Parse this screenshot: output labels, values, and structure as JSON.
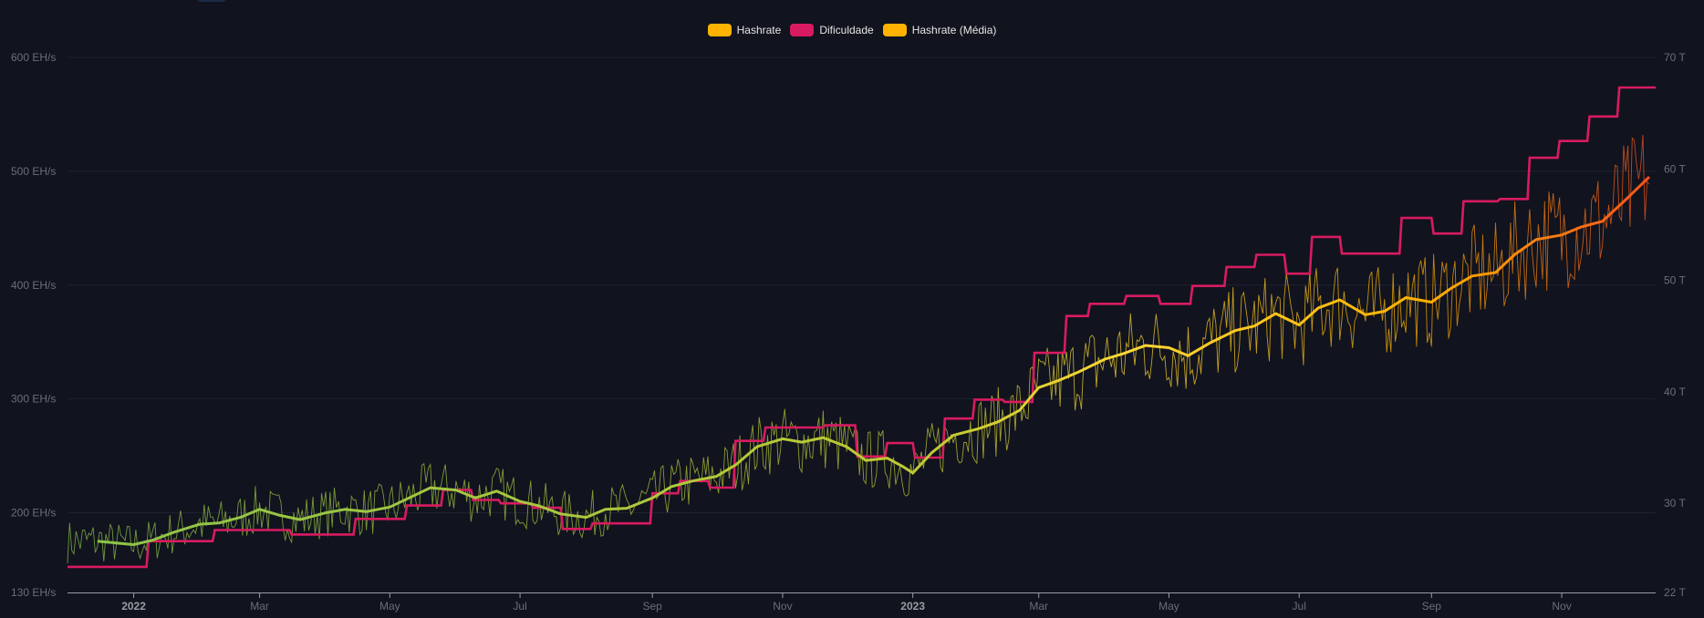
{
  "legend": [
    {
      "label": "Hashrate",
      "color": "#ffb300"
    },
    {
      "label": "Dificuldade",
      "color": "#d81b60"
    },
    {
      "label": "Hashrate (Média)",
      "color": "#ffb300"
    }
  ],
  "chart_data": {
    "type": "line",
    "x_range": [
      "2021-12-01",
      "2023-12-15"
    ],
    "y_left": {
      "min": 130,
      "max": 600,
      "unit": "EH/s",
      "ticks": [
        {
          "v": 130,
          "label": "130 EH/s"
        },
        {
          "v": 200,
          "label": "200 EH/s"
        },
        {
          "v": 300,
          "label": "300 EH/s"
        },
        {
          "v": 400,
          "label": "400 EH/s"
        },
        {
          "v": 500,
          "label": "500 EH/s"
        },
        {
          "v": 600,
          "label": "600 EH/s"
        }
      ]
    },
    "y_right": {
      "min": 22,
      "max": 70,
      "unit": "T",
      "ticks": [
        {
          "v": 22,
          "label": "22 T"
        },
        {
          "v": 30,
          "label": "30 T"
        },
        {
          "v": 40,
          "label": "40 T"
        },
        {
          "v": 50,
          "label": "50 T"
        },
        {
          "v": 60,
          "label": "60 T"
        },
        {
          "v": 70,
          "label": "70 T"
        }
      ]
    },
    "x_ticks": [
      {
        "date": "2022-01-01",
        "label": "2022",
        "bold": true
      },
      {
        "date": "2022-03-01",
        "label": "Mar",
        "bold": false
      },
      {
        "date": "2022-05-01",
        "label": "May",
        "bold": false
      },
      {
        "date": "2022-07-01",
        "label": "Jul",
        "bold": false
      },
      {
        "date": "2022-09-01",
        "label": "Sep",
        "bold": false
      },
      {
        "date": "2022-11-01",
        "label": "Nov",
        "bold": false
      },
      {
        "date": "2023-01-01",
        "label": "2023",
        "bold": true
      },
      {
        "date": "2023-03-01",
        "label": "Mar",
        "bold": false
      },
      {
        "date": "2023-05-01",
        "label": "May",
        "bold": false
      },
      {
        "date": "2023-07-01",
        "label": "Jul",
        "bold": false
      },
      {
        "date": "2023-09-01",
        "label": "Sep",
        "bold": false
      },
      {
        "date": "2023-11-01",
        "label": "Nov",
        "bold": false
      }
    ],
    "series": [
      {
        "name": "Hashrate (Média)",
        "axis": "left",
        "points": [
          [
            "2021-12-15",
            175
          ],
          [
            "2022-01-01",
            172
          ],
          [
            "2022-01-10",
            176
          ],
          [
            "2022-01-20",
            183
          ],
          [
            "2022-02-01",
            190
          ],
          [
            "2022-02-10",
            191
          ],
          [
            "2022-02-20",
            196
          ],
          [
            "2022-03-01",
            203
          ],
          [
            "2022-03-10",
            198
          ],
          [
            "2022-03-20",
            194
          ],
          [
            "2022-04-01",
            200
          ],
          [
            "2022-04-10",
            203
          ],
          [
            "2022-04-20",
            201
          ],
          [
            "2022-05-01",
            205
          ],
          [
            "2022-05-10",
            213
          ],
          [
            "2022-05-20",
            222
          ],
          [
            "2022-06-01",
            220
          ],
          [
            "2022-06-10",
            213
          ],
          [
            "2022-06-20",
            219
          ],
          [
            "2022-07-01",
            210
          ],
          [
            "2022-07-10",
            206
          ],
          [
            "2022-07-20",
            199
          ],
          [
            "2022-08-01",
            196
          ],
          [
            "2022-08-10",
            203
          ],
          [
            "2022-08-20",
            204
          ],
          [
            "2022-09-01",
            213
          ],
          [
            "2022-09-10",
            223
          ],
          [
            "2022-09-20",
            228
          ],
          [
            "2022-10-01",
            232
          ],
          [
            "2022-10-10",
            242
          ],
          [
            "2022-10-20",
            258
          ],
          [
            "2022-11-01",
            265
          ],
          [
            "2022-11-10",
            262
          ],
          [
            "2022-11-20",
            266
          ],
          [
            "2022-12-01",
            258
          ],
          [
            "2022-12-10",
            246
          ],
          [
            "2022-12-20",
            248
          ],
          [
            "2022-12-27",
            241
          ],
          [
            "2023-01-01",
            235
          ],
          [
            "2023-01-10",
            253
          ],
          [
            "2023-01-20",
            268
          ],
          [
            "2023-02-01",
            274
          ],
          [
            "2023-02-10",
            280
          ],
          [
            "2023-02-20",
            290
          ],
          [
            "2023-03-01",
            310
          ],
          [
            "2023-03-10",
            316
          ],
          [
            "2023-03-20",
            324
          ],
          [
            "2023-04-01",
            335
          ],
          [
            "2023-04-10",
            340
          ],
          [
            "2023-04-20",
            347
          ],
          [
            "2023-05-01",
            345
          ],
          [
            "2023-05-10",
            338
          ],
          [
            "2023-05-20",
            349
          ],
          [
            "2023-06-01",
            360
          ],
          [
            "2023-06-10",
            364
          ],
          [
            "2023-06-20",
            375
          ],
          [
            "2023-07-01",
            365
          ],
          [
            "2023-07-10",
            380
          ],
          [
            "2023-07-20",
            387
          ],
          [
            "2023-08-01",
            374
          ],
          [
            "2023-08-10",
            377
          ],
          [
            "2023-08-20",
            389
          ],
          [
            "2023-09-01",
            385
          ],
          [
            "2023-09-10",
            397
          ],
          [
            "2023-09-20",
            408
          ],
          [
            "2023-10-01",
            411
          ],
          [
            "2023-10-10",
            427
          ],
          [
            "2023-10-20",
            440
          ],
          [
            "2023-11-01",
            444
          ],
          [
            "2023-11-10",
            451
          ],
          [
            "2023-11-20",
            456
          ],
          [
            "2023-12-01",
            475
          ],
          [
            "2023-12-12",
            495
          ]
        ]
      },
      {
        "name": "Dificuldade",
        "axis": "right",
        "points": [
          [
            "2021-12-01",
            24.3
          ],
          [
            "2022-01-07",
            24.3
          ],
          [
            "2022-01-08",
            26.6
          ],
          [
            "2022-02-07",
            26.6
          ],
          [
            "2022-02-08",
            27.6
          ],
          [
            "2022-03-15",
            27.6
          ],
          [
            "2022-03-16",
            27.2
          ],
          [
            "2022-04-14",
            27.2
          ],
          [
            "2022-04-15",
            28.6
          ],
          [
            "2022-05-08",
            28.6
          ],
          [
            "2022-05-09",
            29.8
          ],
          [
            "2022-05-25",
            29.8
          ],
          [
            "2022-05-26",
            31.2
          ],
          [
            "2022-06-08",
            31.2
          ],
          [
            "2022-06-09",
            30.3
          ],
          [
            "2022-06-21",
            30.3
          ],
          [
            "2022-06-22",
            30.0
          ],
          [
            "2022-07-06",
            30.0
          ],
          [
            "2022-07-07",
            29.6
          ],
          [
            "2022-07-20",
            29.6
          ],
          [
            "2022-07-21",
            27.7
          ],
          [
            "2022-08-03",
            27.7
          ],
          [
            "2022-08-04",
            28.2
          ],
          [
            "2022-08-31",
            28.2
          ],
          [
            "2022-09-01",
            30.9
          ],
          [
            "2022-09-13",
            30.9
          ],
          [
            "2022-09-14",
            32.0
          ],
          [
            "2022-09-27",
            32.0
          ],
          [
            "2022-09-28",
            31.4
          ],
          [
            "2022-10-09",
            31.4
          ],
          [
            "2022-10-10",
            35.6
          ],
          [
            "2022-10-23",
            35.6
          ],
          [
            "2022-10-24",
            36.8
          ],
          [
            "2022-11-20",
            36.8
          ],
          [
            "2022-11-21",
            37.0
          ],
          [
            "2022-12-05",
            37.0
          ],
          [
            "2022-12-06",
            34.2
          ],
          [
            "2022-12-19",
            34.2
          ],
          [
            "2022-12-20",
            35.4
          ],
          [
            "2023-01-01",
            35.4
          ],
          [
            "2023-01-02",
            34.1
          ],
          [
            "2023-01-15",
            34.1
          ],
          [
            "2023-01-16",
            37.6
          ],
          [
            "2023-01-29",
            37.6
          ],
          [
            "2023-01-30",
            39.3
          ],
          [
            "2023-02-12",
            39.3
          ],
          [
            "2023-02-13",
            39.1
          ],
          [
            "2023-02-26",
            39.1
          ],
          [
            "2023-02-27",
            43.5
          ],
          [
            "2023-03-13",
            43.5
          ],
          [
            "2023-03-14",
            46.8
          ],
          [
            "2023-03-24",
            46.8
          ],
          [
            "2023-03-25",
            47.9
          ],
          [
            "2023-04-10",
            47.9
          ],
          [
            "2023-04-11",
            48.6
          ],
          [
            "2023-04-26",
            48.6
          ],
          [
            "2023-04-27",
            47.9
          ],
          [
            "2023-05-11",
            47.9
          ],
          [
            "2023-05-12",
            49.5
          ],
          [
            "2023-05-27",
            49.5
          ],
          [
            "2023-05-28",
            51.2
          ],
          [
            "2023-06-10",
            51.2
          ],
          [
            "2023-06-11",
            52.3
          ],
          [
            "2023-06-24",
            52.3
          ],
          [
            "2023-06-25",
            50.6
          ],
          [
            "2023-07-06",
            50.6
          ],
          [
            "2023-07-07",
            53.9
          ],
          [
            "2023-07-20",
            53.9
          ],
          [
            "2023-07-21",
            52.4
          ],
          [
            "2023-08-17",
            52.4
          ],
          [
            "2023-08-18",
            55.6
          ],
          [
            "2023-09-01",
            55.6
          ],
          [
            "2023-09-02",
            54.2
          ],
          [
            "2023-09-15",
            54.2
          ],
          [
            "2023-09-16",
            57.1
          ],
          [
            "2023-10-02",
            57.1
          ],
          [
            "2023-10-03",
            57.3
          ],
          [
            "2023-10-16",
            57.3
          ],
          [
            "2023-10-17",
            61.0
          ],
          [
            "2023-10-30",
            61.0
          ],
          [
            "2023-10-31",
            62.5
          ],
          [
            "2023-11-13",
            62.5
          ],
          [
            "2023-11-14",
            64.7
          ],
          [
            "2023-11-27",
            64.7
          ],
          [
            "2023-11-28",
            67.3
          ],
          [
            "2023-12-15",
            67.3
          ]
        ]
      },
      {
        "name": "Hashrate",
        "axis": "left",
        "daily_from": "hashrate_average_with_daily_variation"
      }
    ]
  }
}
